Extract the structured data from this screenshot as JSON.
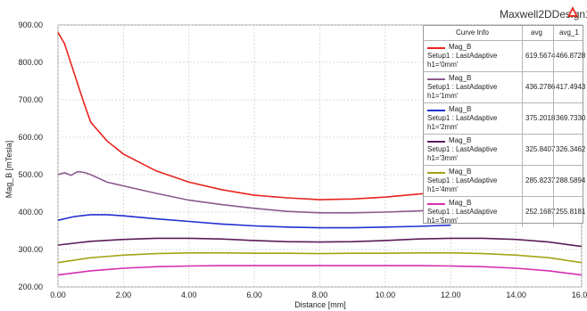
{
  "design_title": "Maxwell2DDesign1",
  "logo_icon": "ansoft-triangle-icon",
  "legend": {
    "headers": [
      "Curve Info",
      "avg",
      "avg_1"
    ],
    "rows": [
      {
        "name": "Mag_B",
        "source": "Setup1 : LastAdaptive",
        "param": "h1='0mm'",
        "avg": "619.5674",
        "avg_1": "466.8728",
        "color": "#e8231f"
      },
      {
        "name": "Mag_B",
        "source": "Setup1 : LastAdaptive",
        "param": "h1='1mm'",
        "avg": "436.2786",
        "avg_1": "417.4943",
        "color": "#8b5a8c"
      },
      {
        "name": "Mag_B",
        "source": "Setup1 : LastAdaptive",
        "param": "h1='2mm'",
        "avg": "375.2018",
        "avg_1": "369.7330",
        "color": "#1f2fd0"
      },
      {
        "name": "Mag_B",
        "source": "Setup1 : LastAdaptive",
        "param": "h1='3mm'",
        "avg": "325.8407",
        "avg_1": "326.3462",
        "color": "#5a1c5a"
      },
      {
        "name": "Mag_B",
        "source": "Setup1 : LastAdaptive",
        "param": "h1='4mm'",
        "avg": "285.8237",
        "avg_1": "288.5894",
        "color": "#a3a317"
      },
      {
        "name": "Mag_B",
        "source": "Setup1 : LastAdaptive",
        "param": "h1='5mm'",
        "avg": "252.1687",
        "avg_1": "255.8181",
        "color": "#d42fb0"
      }
    ]
  },
  "chart_data": {
    "type": "line",
    "xlabel": "Distance [mm]",
    "ylabel": "Mag_B [mTesla]",
    "xlim": [
      0,
      16
    ],
    "ylim": [
      200,
      900
    ],
    "xticks": [
      "0.00",
      "2.00",
      "4.00",
      "6.00",
      "8.00",
      "10.00",
      "12.00",
      "14.00",
      "16.00"
    ],
    "yticks": [
      "200.00",
      "300.00",
      "400.00",
      "500.00",
      "600.00",
      "700.00",
      "800.00",
      "900.00"
    ],
    "grid": true,
    "series": [
      {
        "name": "h1='0mm'",
        "color": "#e8231f",
        "x": [
          0,
          0.2,
          0.5,
          0.8,
          1.0,
          1.5,
          2.0,
          3.0,
          4.0,
          5.0,
          6.0,
          7.0,
          8.0,
          9.0,
          10.0,
          11.0,
          12.0
        ],
        "y": [
          880,
          850,
          770,
          690,
          640,
          590,
          555,
          510,
          480,
          460,
          445,
          438,
          433,
          435,
          440,
          448,
          455
        ]
      },
      {
        "name": "h1='1mm'",
        "color": "#8b5a8c",
        "x": [
          0,
          0.2,
          0.4,
          0.6,
          0.8,
          1.0,
          1.5,
          2.0,
          3.0,
          4.0,
          5.0,
          6.0,
          7.0,
          8.0,
          9.0,
          10.0,
          11.0,
          12.0
        ],
        "y": [
          500,
          505,
          498,
          508,
          506,
          500,
          480,
          470,
          450,
          432,
          420,
          410,
          402,
          398,
          398,
          400,
          403,
          408
        ]
      },
      {
        "name": "h1='2mm'",
        "color": "#1f2fd0",
        "x": [
          0,
          0.5,
          1.0,
          1.5,
          2.0,
          3.0,
          4.0,
          5.0,
          6.0,
          7.0,
          8.0,
          9.0,
          10.0,
          11.0,
          12.0
        ],
        "y": [
          378,
          388,
          393,
          393,
          390,
          382,
          375,
          368,
          363,
          360,
          358,
          358,
          360,
          362,
          365
        ]
      },
      {
        "name": "h1='3mm'",
        "color": "#5a1c5a",
        "x": [
          0,
          1,
          2,
          3,
          4,
          5,
          6,
          7,
          8,
          9,
          10,
          11,
          12,
          13,
          14,
          15,
          16
        ],
        "y": [
          312,
          322,
          327,
          330,
          330,
          328,
          324,
          321,
          320,
          321,
          324,
          328,
          330,
          330,
          327,
          320,
          308
        ]
      },
      {
        "name": "h1='4mm'",
        "color": "#a3a317",
        "x": [
          0,
          1,
          2,
          3,
          4,
          5,
          6,
          7,
          8,
          9,
          10,
          11,
          12,
          13,
          14,
          15,
          16
        ],
        "y": [
          265,
          278,
          285,
          289,
          291,
          291,
          290,
          290,
          289,
          290,
          290,
          291,
          291,
          289,
          285,
          278,
          265
        ]
      },
      {
        "name": "h1='5mm'",
        "color": "#d42fb0",
        "x": [
          0,
          1,
          2,
          3,
          4,
          5,
          6,
          7,
          8,
          9,
          10,
          11,
          12,
          13,
          14,
          15,
          16
        ],
        "y": [
          232,
          243,
          250,
          254,
          256,
          257,
          257,
          257,
          257,
          257,
          257,
          257,
          256,
          254,
          250,
          243,
          232
        ]
      }
    ]
  }
}
